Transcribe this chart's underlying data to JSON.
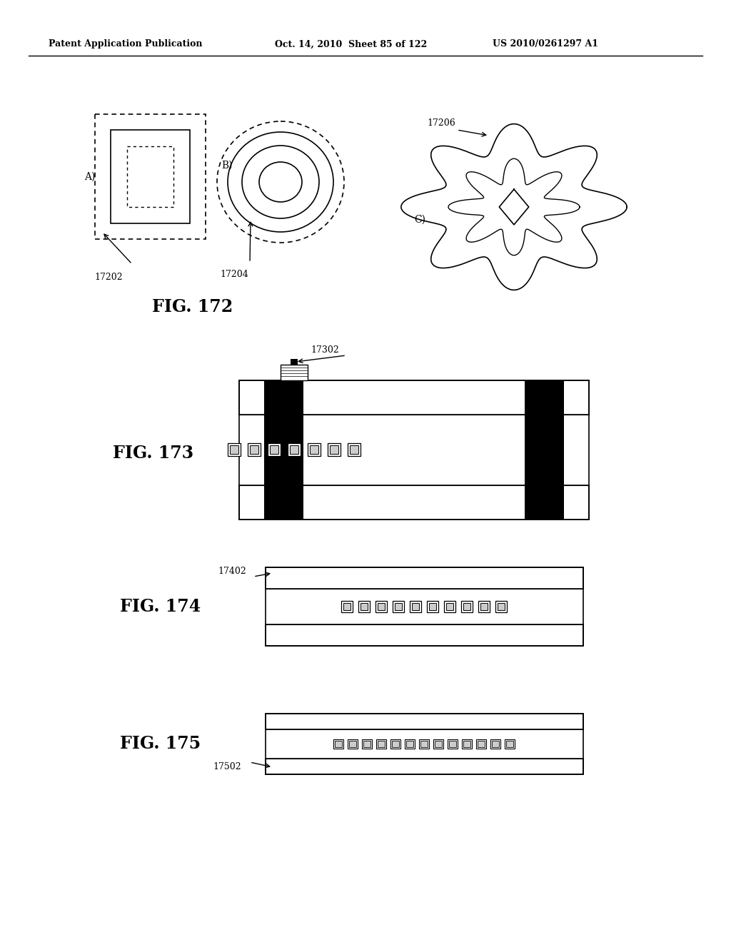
{
  "bg_color": "#ffffff",
  "header_left": "Patent Application Publication",
  "header_mid": "Oct. 14, 2010  Sheet 85 of 122",
  "header_right": "US 2010/0261297 A1",
  "fig172_label": "FIG. 172",
  "fig173_label": "FIG. 173",
  "fig174_label": "FIG. 174",
  "fig175_label": "FIG. 175",
  "label_A": "A)",
  "label_B": "B)",
  "label_C": "C)",
  "ref_17202": "17202",
  "ref_17204": "17204",
  "ref_17206": "17206",
  "ref_17302": "17302",
  "ref_17402": "17402",
  "ref_17502": "17502",
  "line_color": "#000000",
  "black_fill": "#000000"
}
